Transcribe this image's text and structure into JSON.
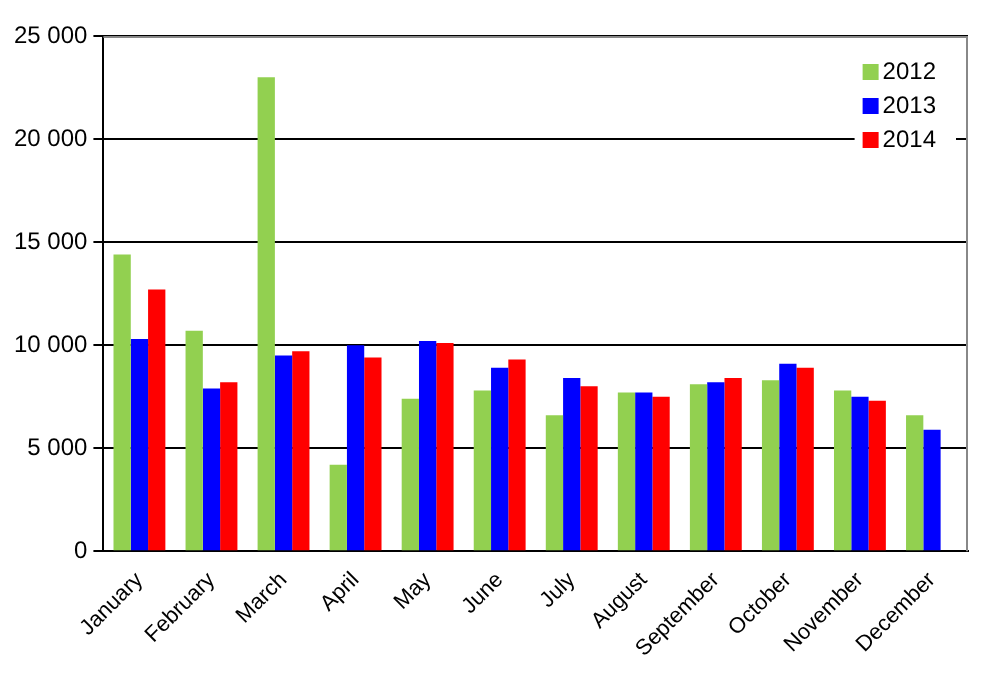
{
  "chart_data": {
    "type": "bar",
    "categories": [
      "January",
      "February",
      "March",
      "April",
      "May",
      "June",
      "July",
      "August",
      "September",
      "October",
      "November",
      "December"
    ],
    "series": [
      {
        "name": "2012",
        "color": "#92d050",
        "values": [
          14400,
          10700,
          23000,
          4200,
          7400,
          7800,
          6600,
          7700,
          8100,
          8300,
          7800,
          6600
        ]
      },
      {
        "name": "2013",
        "color": "#0000ff",
        "values": [
          10300,
          7900,
          9500,
          10000,
          10200,
          8900,
          8400,
          7700,
          8200,
          9100,
          7500,
          5900
        ]
      },
      {
        "name": "2014",
        "color": "#ff0000",
        "values": [
          12700,
          8200,
          9700,
          9400,
          10100,
          9300,
          8000,
          7500,
          8400,
          8900,
          7300,
          null
        ]
      }
    ],
    "ylim": [
      0,
      25000
    ],
    "yticks": [
      {
        "value": 0,
        "label": "0"
      },
      {
        "value": 5000,
        "label": "5 000"
      },
      {
        "value": 10000,
        "label": "10 000"
      },
      {
        "value": 15000,
        "label": "15 000"
      },
      {
        "value": 20000,
        "label": "20 000"
      },
      {
        "value": 25000,
        "label": "25 000"
      }
    ],
    "grid": "y",
    "legend": "top right"
  }
}
